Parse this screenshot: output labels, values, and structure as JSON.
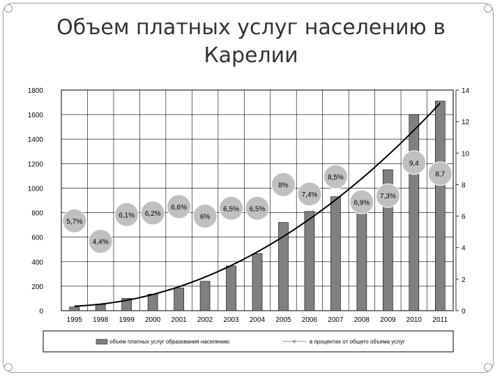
{
  "title": "Объем платных услуг населению в Карелии",
  "chart_data": {
    "type": "bar",
    "categories": [
      "1995",
      "1998",
      "1999",
      "2000",
      "2001",
      "2002",
      "2003",
      "2004",
      "2005",
      "2006",
      "2007",
      "2008",
      "2009",
      "2010",
      "2011"
    ],
    "series": [
      {
        "name": "объем платных услуг образования населению",
        "type": "bar",
        "axis": "left",
        "color": "#808080",
        "values": [
          30,
          50,
          100,
          135,
          185,
          240,
          365,
          465,
          720,
          810,
          930,
          905,
          1150,
          1600,
          1710
        ]
      },
      {
        "name": "в процентах от общего объема услуг",
        "type": "bubble",
        "axis": "right",
        "color": "#c0c0c0",
        "values": [
          5.7,
          4.4,
          6.1,
          6.2,
          6.6,
          6,
          6.5,
          6.5,
          8,
          7.4,
          8.5,
          6.9,
          7.3,
          9.4,
          8.7
        ],
        "labels": [
          "5,7%",
          "4,4%",
          "6,1%",
          "6,2%",
          "6,6%",
          "6%",
          "6,5%",
          "6,5%",
          "8%",
          "7,4%",
          "8,5%",
          "6,9%",
          "7,3%",
          "9,4",
          "8,7"
        ]
      }
    ],
    "trendline": {
      "type": "polynomial",
      "color": "#000000",
      "axis": "left"
    },
    "yleft": {
      "ticks": [
        "0",
        "200",
        "400",
        "600",
        "800",
        "1000",
        "1200",
        "1400",
        "1600",
        "1800"
      ],
      "ylim": [
        0,
        1800
      ]
    },
    "yright": {
      "ticks": [
        "0",
        "2",
        "4",
        "6",
        "8",
        "10",
        "12",
        "14"
      ],
      "ylim": [
        0,
        14
      ]
    },
    "grid": true,
    "legend": "bottom"
  }
}
